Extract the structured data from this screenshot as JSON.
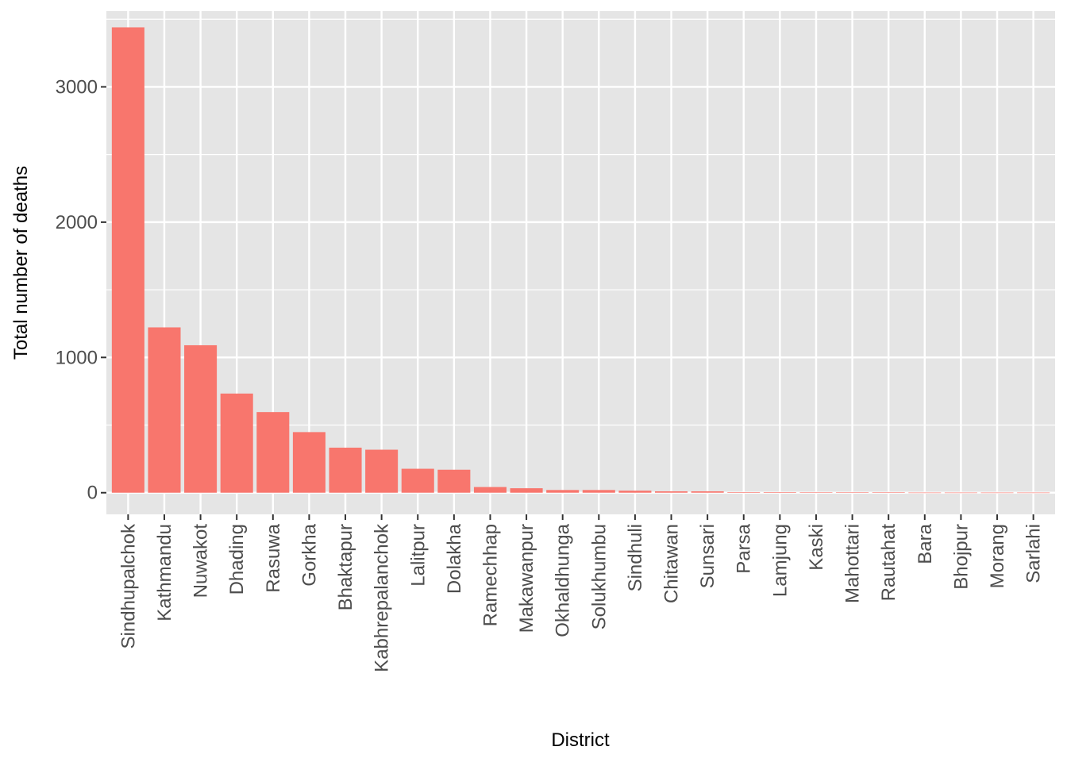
{
  "chart_data": {
    "type": "bar",
    "title": "",
    "xlabel": "District",
    "ylabel": "Total number of deaths",
    "ylim": [
      -160,
      3560
    ],
    "yticks": [
      0,
      1000,
      2000,
      3000
    ],
    "bar_color": "#f8766d",
    "panel_color": "#e5e5e5",
    "grid_color": "#ffffff",
    "grid": true,
    "categories": [
      "Sindhupalchok",
      "Kathmandu",
      "Nuwakot",
      "Dhading",
      "Rasuwa",
      "Gorkha",
      "Bhaktapur",
      "Kabhrepalanchok",
      "Lalitpur",
      "Dolakha",
      "Ramechhap",
      "Makawanpur",
      "Okhaldhunga",
      "Solukhumbu",
      "Sindhuli",
      "Chitawan",
      "Sunsari",
      "Parsa",
      "Lamjung",
      "Kaski",
      "Mahottari",
      "Rautahat",
      "Bara",
      "Bhojpur",
      "Morang",
      "Sarlahi"
    ],
    "values": [
      3440,
      1222,
      1090,
      733,
      596,
      448,
      333,
      318,
      177,
      170,
      42,
      33,
      20,
      20,
      15,
      10,
      10,
      4,
      4,
      3,
      3,
      3,
      1,
      1,
      1,
      1
    ]
  }
}
